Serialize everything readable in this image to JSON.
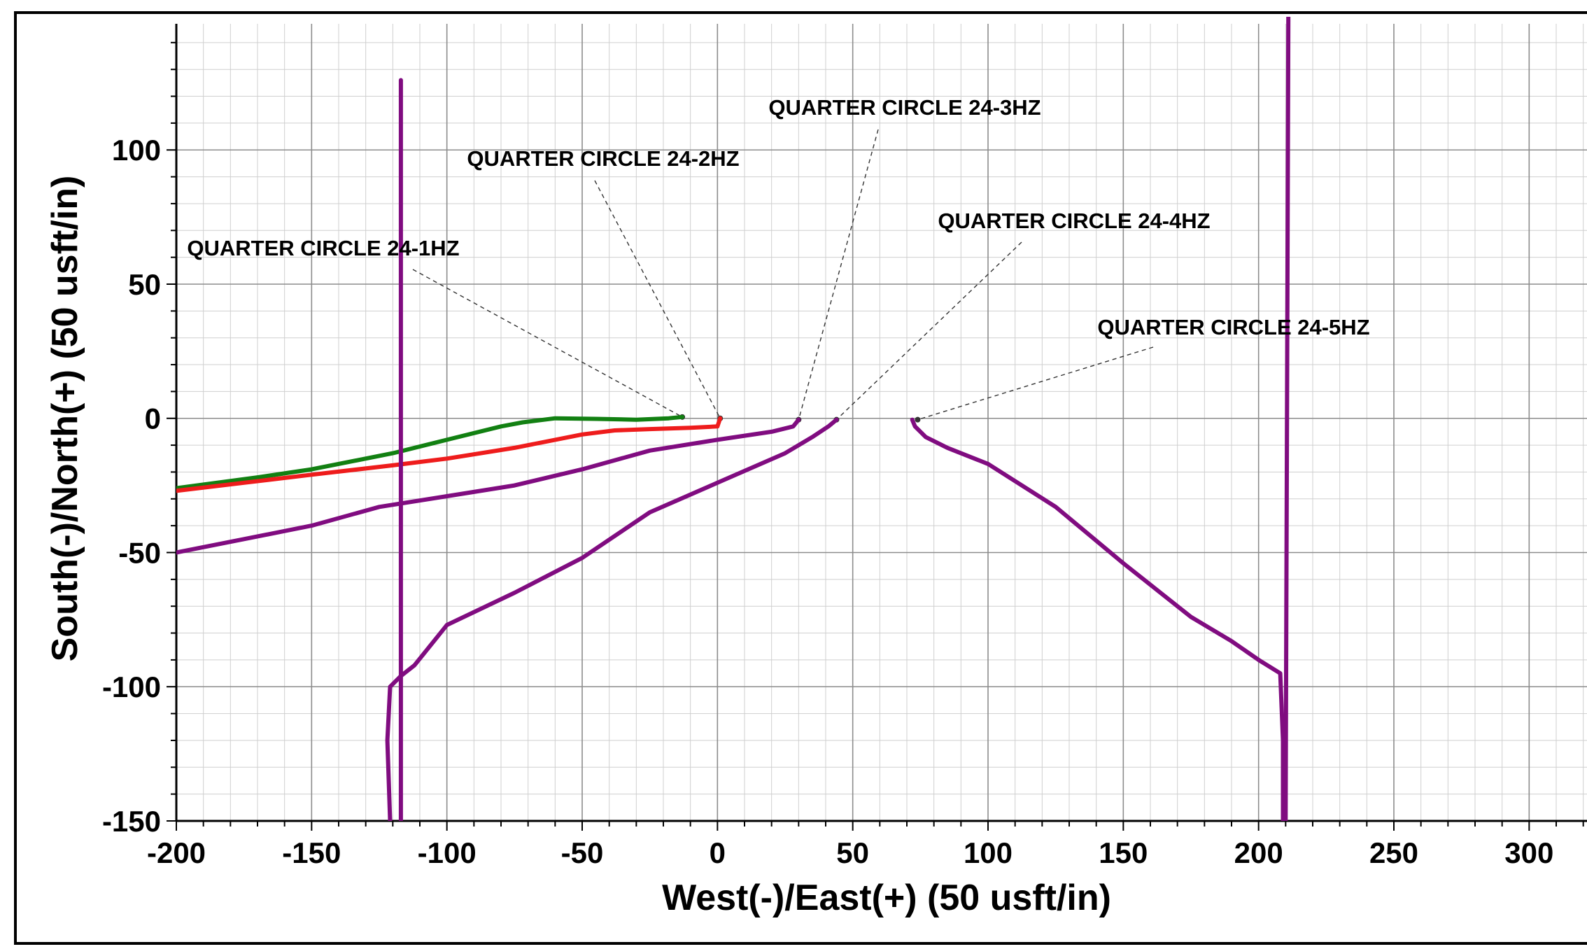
{
  "chart_data": {
    "type": "line",
    "title": "",
    "xlabel": "West(-)/East(+) (50 usft/in)",
    "ylabel": "South(-)/North(+) (50 usft/in)",
    "xlim": [
      -200,
      325
    ],
    "ylim": [
      -150,
      147
    ],
    "x_ticks": [
      "-200",
      "-150",
      "-100",
      "-50",
      "0",
      "50",
      "100",
      "150",
      "200",
      "250",
      "300"
    ],
    "y_ticks": [
      "100",
      "50",
      "0",
      "-50",
      "-100",
      "-150"
    ],
    "grid": true,
    "series": [
      {
        "name": "QUARTER CIRCLE 24-1HZ",
        "color": "#128012",
        "points": [
          [
            -13,
            0.5
          ],
          [
            -18,
            0
          ],
          [
            -30,
            -0.5
          ],
          [
            -45,
            -0.2
          ],
          [
            -60,
            0
          ],
          [
            -72,
            -1.5
          ],
          [
            -80,
            -3
          ],
          [
            -100,
            -8
          ],
          [
            -120,
            -13
          ],
          [
            -150,
            -19
          ],
          [
            -170,
            -22
          ],
          [
            -200,
            -26
          ]
        ]
      },
      {
        "name": "QUARTER CIRCLE 24-2HZ",
        "color": "#ee1c1c",
        "points": [
          [
            1,
            0
          ],
          [
            0,
            -3
          ],
          [
            -10,
            -3.5
          ],
          [
            -25,
            -4
          ],
          [
            -38,
            -4.5
          ],
          [
            -50,
            -6
          ],
          [
            -75,
            -11
          ],
          [
            -100,
            -15
          ],
          [
            -120,
            -17.5
          ],
          [
            -150,
            -21
          ],
          [
            -175,
            -24
          ],
          [
            -200,
            -27
          ]
        ]
      },
      {
        "name": "QUARTER CIRCLE 24-3HZ",
        "color": "#800c80",
        "points": [
          [
            30,
            -0.5
          ],
          [
            28,
            -3
          ],
          [
            20,
            -5
          ],
          [
            0,
            -8
          ],
          [
            -25,
            -12
          ],
          [
            -50,
            -19
          ],
          [
            -75,
            -25
          ],
          [
            -100,
            -29
          ],
          [
            -125,
            -33
          ],
          [
            -150,
            -40
          ],
          [
            -175,
            -45
          ],
          [
            -200,
            -50
          ]
        ]
      },
      {
        "name": "QUARTER CIRCLE 24-4HZ",
        "color": "#800c80",
        "points": [
          [
            44,
            -0.5
          ],
          [
            41,
            -3
          ],
          [
            35,
            -7
          ],
          [
            25,
            -13
          ],
          [
            0,
            -24
          ],
          [
            -25,
            -35
          ],
          [
            -50,
            -52
          ],
          [
            -75,
            -65
          ],
          [
            -100,
            -77
          ],
          [
            -112,
            -92
          ],
          [
            -117,
            -96
          ],
          [
            -121,
            -100
          ],
          [
            -122,
            -120
          ],
          [
            -121,
            -150
          ]
        ]
      },
      {
        "name": "QUARTER CIRCLE 24-5HZ",
        "color": "#800c80",
        "points": [
          [
            72,
            -0.5
          ],
          [
            73,
            -3
          ],
          [
            77,
            -7
          ],
          [
            85,
            -11
          ],
          [
            100,
            -17
          ],
          [
            125,
            -33
          ],
          [
            150,
            -54
          ],
          [
            175,
            -74
          ],
          [
            190,
            -83
          ],
          [
            200,
            -90
          ],
          [
            208,
            -95
          ],
          [
            209,
            -120
          ],
          [
            209,
            -150
          ]
        ]
      },
      {
        "name": "",
        "color": "#800c80",
        "points": [
          [
            -117,
            126
          ],
          [
            -117,
            -150
          ]
        ]
      },
      {
        "name": "",
        "color": "#800c80",
        "points": [
          [
            211,
            150
          ],
          [
            210,
            -150
          ]
        ]
      }
    ],
    "annotations": [
      {
        "label": "QUARTER CIRCLE 24-1HZ",
        "target": [
          -13,
          0.5
        ]
      },
      {
        "label": "QUARTER CIRCLE 24-2HZ",
        "target": [
          1,
          0
        ]
      },
      {
        "label": "QUARTER CIRCLE 24-3HZ",
        "target": [
          30,
          -0.5
        ]
      },
      {
        "label": "QUARTER CIRCLE 24-4HZ",
        "target": [
          44,
          -0.5
        ]
      },
      {
        "label": "QUARTER CIRCLE 24-5HZ",
        "target": [
          74,
          -0.5
        ]
      }
    ]
  }
}
